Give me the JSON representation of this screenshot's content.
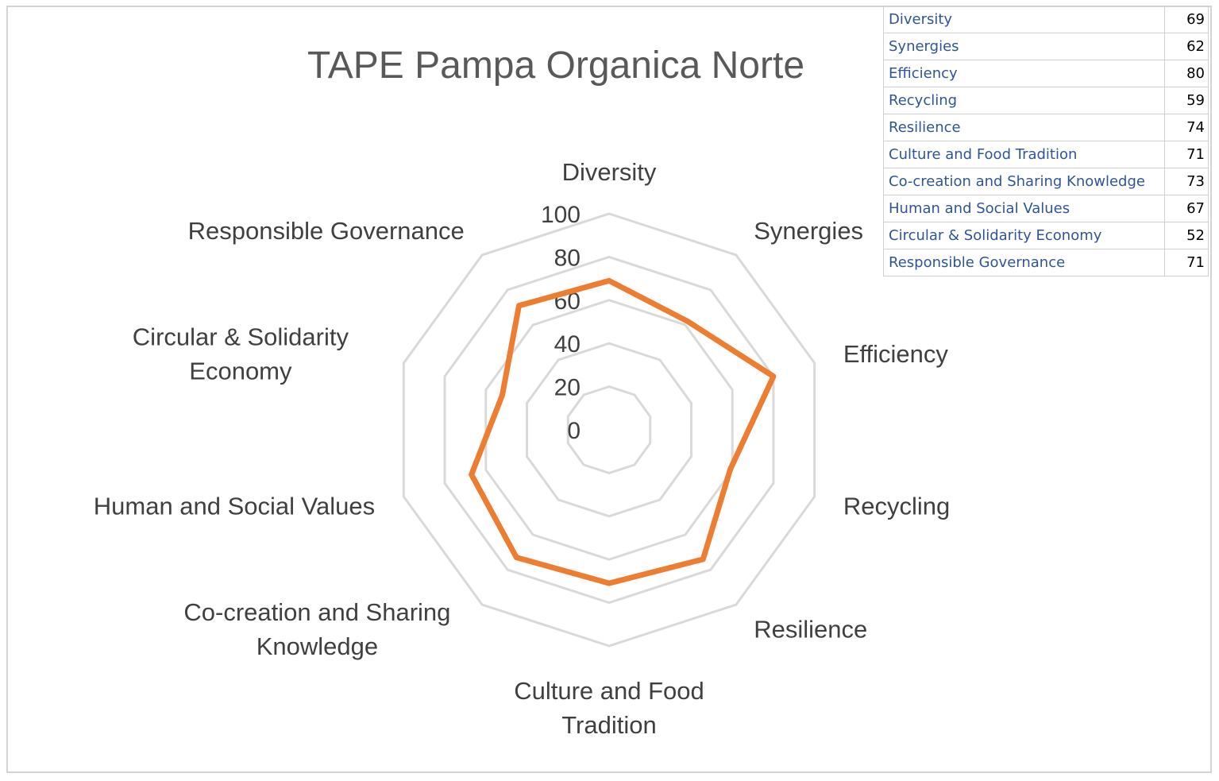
{
  "chart_data": {
    "type": "radar",
    "title": "TAPE Pampa Organica Norte",
    "categories": [
      "Diversity",
      "Synergies",
      "Efficiency",
      "Recycling",
      "Resilience",
      "Culture and Food Tradition",
      "Co-creation and Sharing Knowledge",
      "Human and Social Values",
      "Circular & Solidarity Economy",
      "Responsible Governance"
    ],
    "axis_labels": [
      [
        "Diversity"
      ],
      [
        "Synergies"
      ],
      [
        "Efficiency"
      ],
      [
        "Recycling"
      ],
      [
        "Resilience"
      ],
      [
        "Culture and Food",
        "Tradition"
      ],
      [
        "Co-creation and Sharing",
        "Knowledge"
      ],
      [
        "Human and Social Values"
      ],
      [
        "Circular & Solidarity",
        "Economy"
      ],
      [
        "Responsible Governance"
      ]
    ],
    "values": [
      69,
      62,
      80,
      59,
      74,
      71,
      73,
      67,
      52,
      71
    ],
    "rlim": [
      0,
      100
    ],
    "ticks": [
      0,
      20,
      40,
      60,
      80,
      100
    ],
    "line_color": "#ed7d31",
    "grid_color": "#d9d9d9"
  },
  "table": {
    "rows": [
      {
        "label": "Diversity",
        "value": "69"
      },
      {
        "label": "Synergies",
        "value": "62"
      },
      {
        "label": "Efficiency",
        "value": "80"
      },
      {
        "label": "Recycling",
        "value": "59"
      },
      {
        "label": "Resilience",
        "value": "74"
      },
      {
        "label": "Culture and Food Tradition",
        "value": "71"
      },
      {
        "label": "Co-creation and Sharing Knowledge",
        "value": "73"
      },
      {
        "label": "Human and Social Values",
        "value": "67"
      },
      {
        "label": "Circular & Solidarity Economy",
        "value": "52"
      },
      {
        "label": "Responsible Governance",
        "value": "71"
      }
    ]
  }
}
